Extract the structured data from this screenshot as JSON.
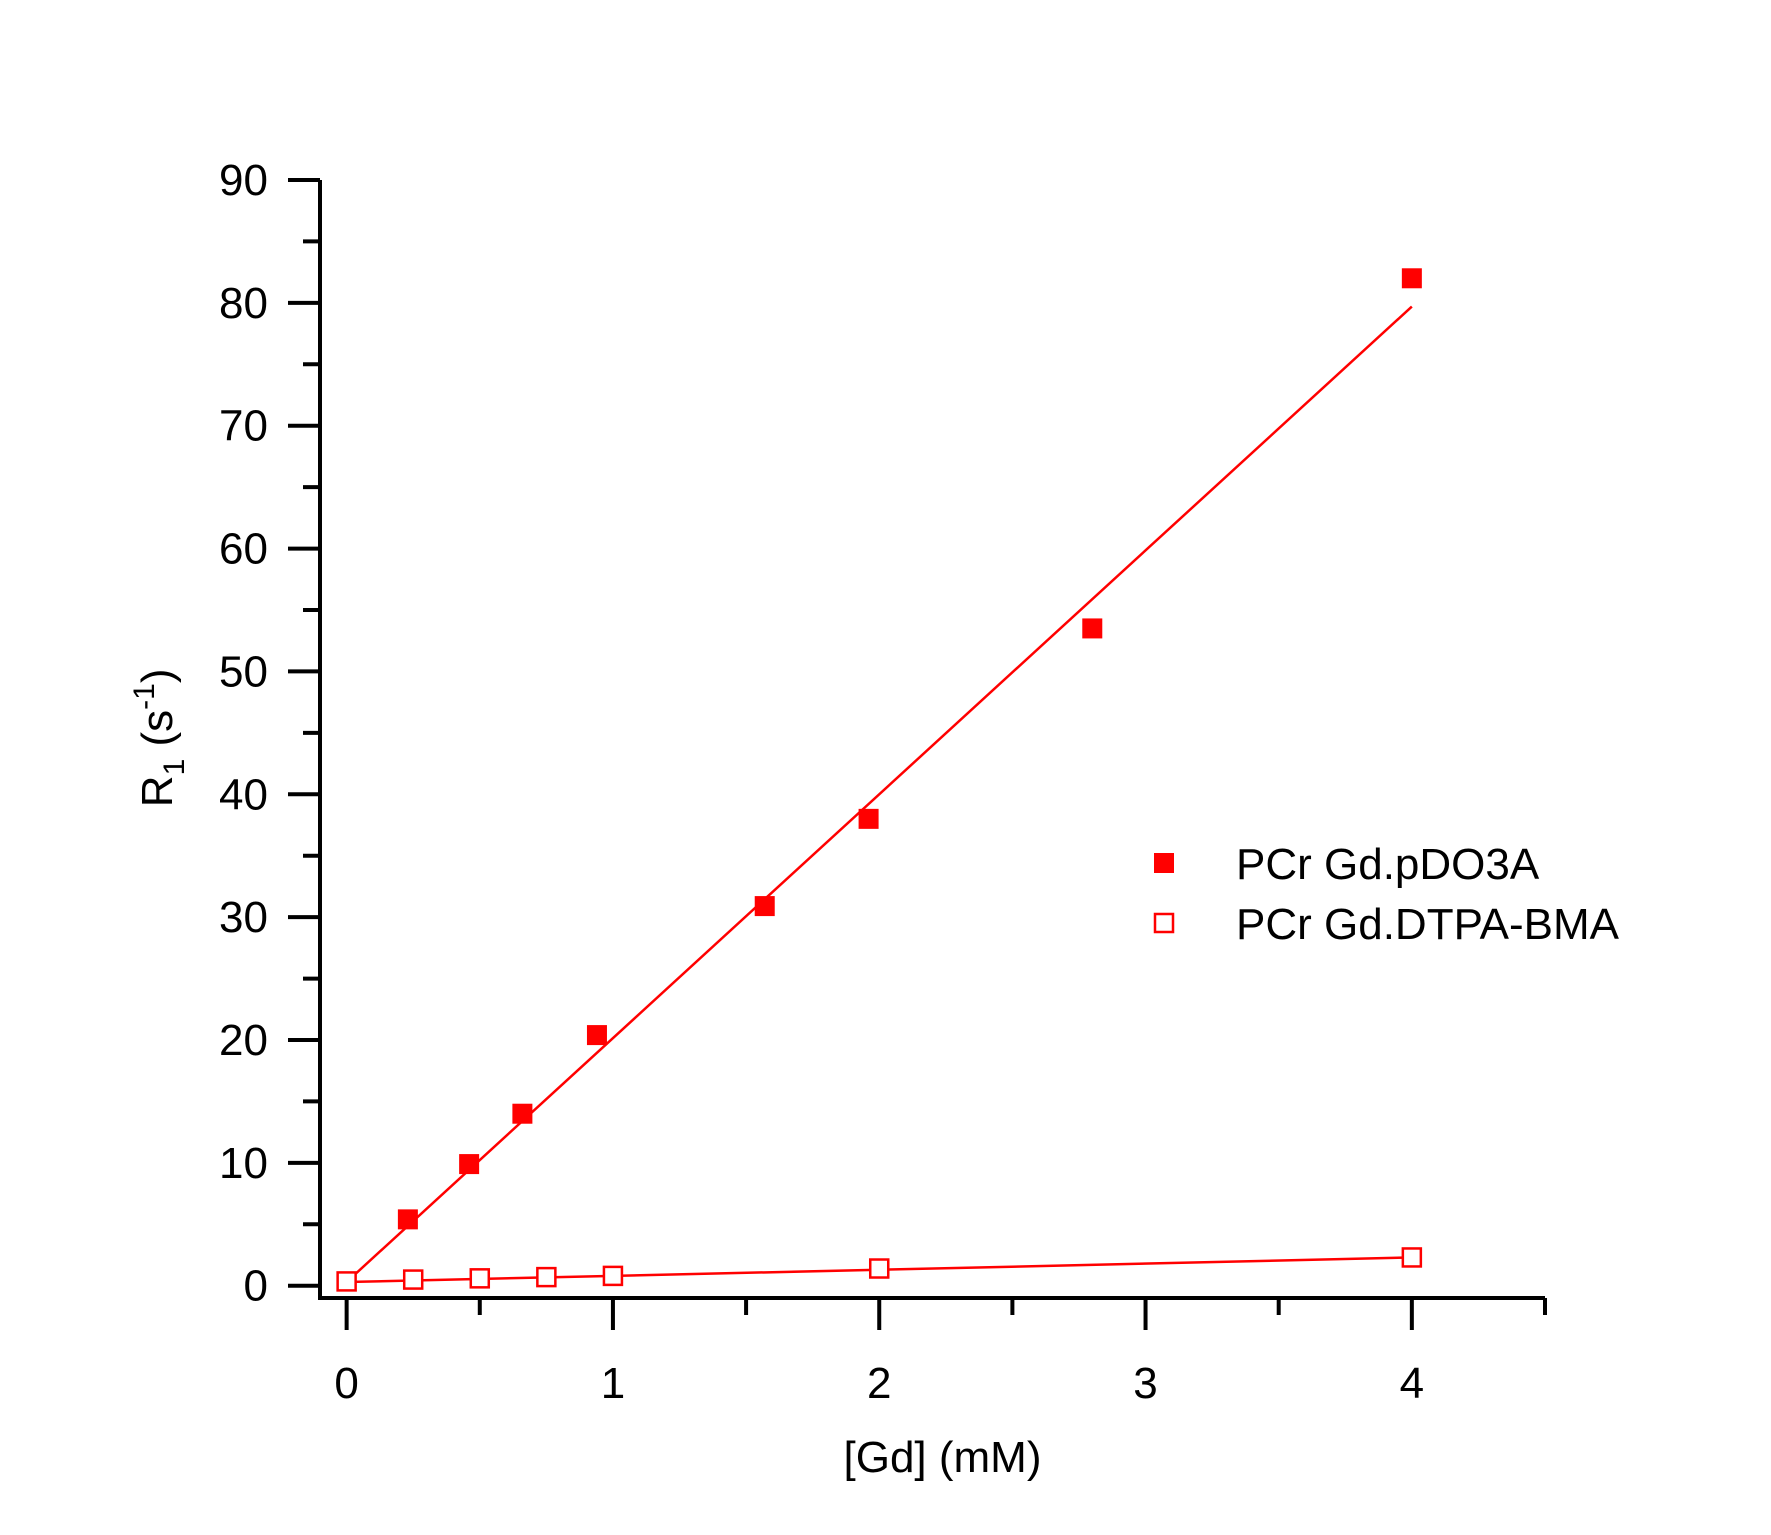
{
  "chart_data": {
    "type": "scatter",
    "title": "",
    "xlabel": "[Gd] (mM)",
    "ylabel": {
      "main": "R",
      "sub": "1",
      "unit_open": " (s",
      "unit_sup": "-1",
      "unit_close": ")"
    },
    "xlim": [
      -0.1,
      4.5
    ],
    "ylim": [
      -1,
      90
    ],
    "xticks": [
      0,
      1,
      2,
      3,
      4
    ],
    "xtick_labels": [
      "0",
      "1",
      "2",
      "3",
      "4"
    ],
    "x_minor_step": 0.5,
    "yticks": [
      0,
      10,
      20,
      30,
      40,
      50,
      60,
      70,
      80,
      90
    ],
    "ytick_labels": [
      "0",
      "10",
      "20",
      "30",
      "40",
      "50",
      "60",
      "70",
      "80",
      "90"
    ],
    "y_minor_step": 5,
    "grid": false,
    "legend_position": "right-middle",
    "series": [
      {
        "name": "PCr Gd.pDO3A",
        "marker": "filled-square",
        "color": "#ff0000",
        "x": [
          0.23,
          0.46,
          0.66,
          0.94,
          1.57,
          1.96,
          2.8,
          4.0
        ],
        "y": [
          5.4,
          9.9,
          14.0,
          20.4,
          30.9,
          38.0,
          53.5,
          82.0
        ],
        "fit": {
          "x": [
            0.02,
            4.0
          ],
          "y": [
            0.7,
            79.7
          ]
        }
      },
      {
        "name": "PCr Gd.DTPA-BMA",
        "marker": "open-square",
        "color": "#ff0000",
        "x": [
          0,
          0.25,
          0.5,
          0.75,
          1.0,
          2.0,
          4.0
        ],
        "y": [
          0.35,
          0.5,
          0.6,
          0.7,
          0.8,
          1.4,
          2.3
        ],
        "fit": {
          "x": [
            0,
            4.0
          ],
          "y": [
            0.3,
            2.3
          ]
        }
      }
    ]
  }
}
